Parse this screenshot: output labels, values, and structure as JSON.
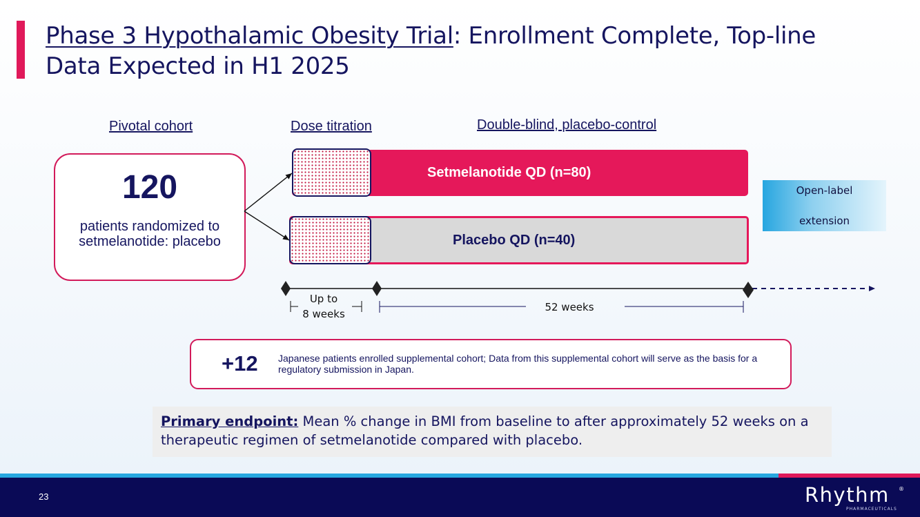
{
  "title": {
    "underlined_part": "Phase 3 Hypothalamic Obesity Trial",
    "rest": ": Enrollment Complete, Top-line Data Expected in H1 2025"
  },
  "headers": {
    "pivotal": "Pivotal cohort",
    "dose": "Dose titration",
    "double_blind": "Double-blind, placebo-control"
  },
  "cohort": {
    "number": "120",
    "text": "patients randomized to setmelanotide: placebo"
  },
  "arms": {
    "setmelanotide": "Setmelanotide  QD (n=80)",
    "placebo": "Placebo QD (n=40)"
  },
  "extension": {
    "line1": "Open-label",
    "line2": "extension"
  },
  "timeline": {
    "titration_line1": "Up to",
    "titration_line2": "8 weeks",
    "duration": "52 weeks"
  },
  "supplemental": {
    "number": "+12",
    "text": "Japanese patients enrolled supplemental cohort; Data from this supplemental cohort will serve as the basis for a regulatory submission in Japan."
  },
  "endpoint": {
    "label": "Primary endpoint:",
    "text": " Mean % change in BMI from baseline to after approximately 52 weeks on a therapeutic regimen of setmelanotide compared with placebo."
  },
  "footer": {
    "page_number": "23",
    "logo_text": "Rhythm",
    "logo_sub": "PHARMACEUTICALS",
    "logo_mark": "®"
  },
  "colors": {
    "accent": "#e0195a",
    "navy": "#0a0a56",
    "blue": "#27a7df"
  }
}
